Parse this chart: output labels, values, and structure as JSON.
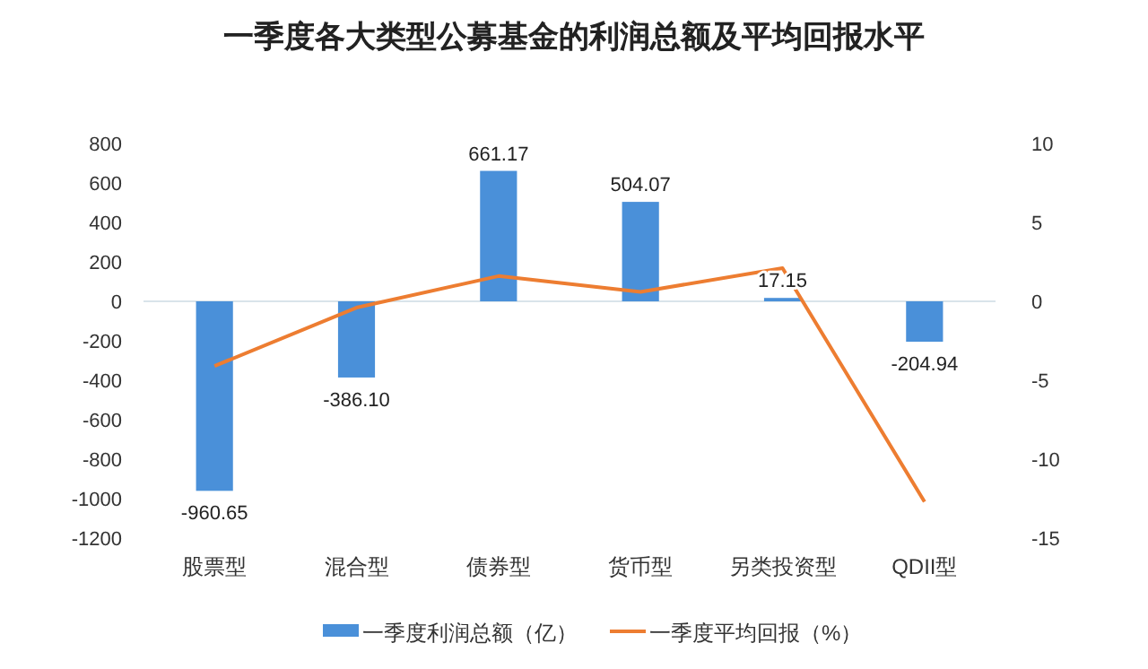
{
  "chart_data": {
    "type": "bar",
    "title": "一季度各大类型公募基金的利润总额及平均回报水平",
    "categories": [
      "股票型",
      "混合型",
      "债券型",
      "货币型",
      "另类投资型",
      "QDII型"
    ],
    "series": [
      {
        "name": "一季度利润总额（亿）",
        "color": "#4a90d9",
        "values": [
          -960.65,
          -386.1,
          661.17,
          504.07,
          17.15,
          -204.94
        ]
      },
      {
        "name": "一季度平均回报（%）",
        "type": "line",
        "axis": "y2",
        "color": "#ed7d31",
        "values": [
          -4.1,
          -0.4,
          1.6,
          0.6,
          2.1,
          -12.7
        ]
      }
    ],
    "value_labels": [
      "-960.65",
      "-386.10",
      "661.17",
      "504.07",
      "17.15",
      "-204.94"
    ],
    "ylim": [
      -1200,
      800
    ],
    "yticks": [
      -1200,
      -1000,
      -800,
      -600,
      -400,
      -200,
      0,
      200,
      400,
      600,
      800
    ],
    "y2lim": [
      -15,
      10
    ],
    "y2ticks": [
      -15,
      -10,
      -5,
      0,
      5,
      10
    ],
    "ref_lines": [
      {
        "axis": "y",
        "value": 0,
        "color": "#d9e4ea"
      }
    ],
    "legend": "bottom",
    "marker": "none",
    "line_style": "solid"
  }
}
